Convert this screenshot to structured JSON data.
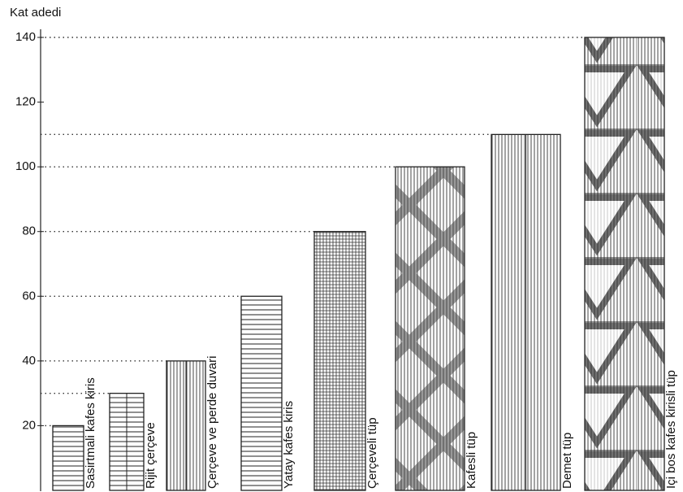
{
  "chart_data": {
    "type": "bar",
    "y_axis_label": "Kat adedi",
    "categories": [
      "Sasirtmali kafes kiris",
      "Rijit çerçeve",
      "Çerçeve ve perde duvari",
      "Yatay kafes kiris",
      "Çerçeveli tüp",
      "Kafesli tüp",
      "Demet tüp",
      "Içi bos kafes kirisli tüp"
    ],
    "values": [
      20,
      30,
      40,
      60,
      80,
      100,
      110,
      140
    ],
    "color": "#222222",
    "ylim": [
      0,
      140
    ],
    "yticks": [
      20,
      40,
      60,
      80,
      100,
      120,
      140
    ],
    "grid": true
  }
}
